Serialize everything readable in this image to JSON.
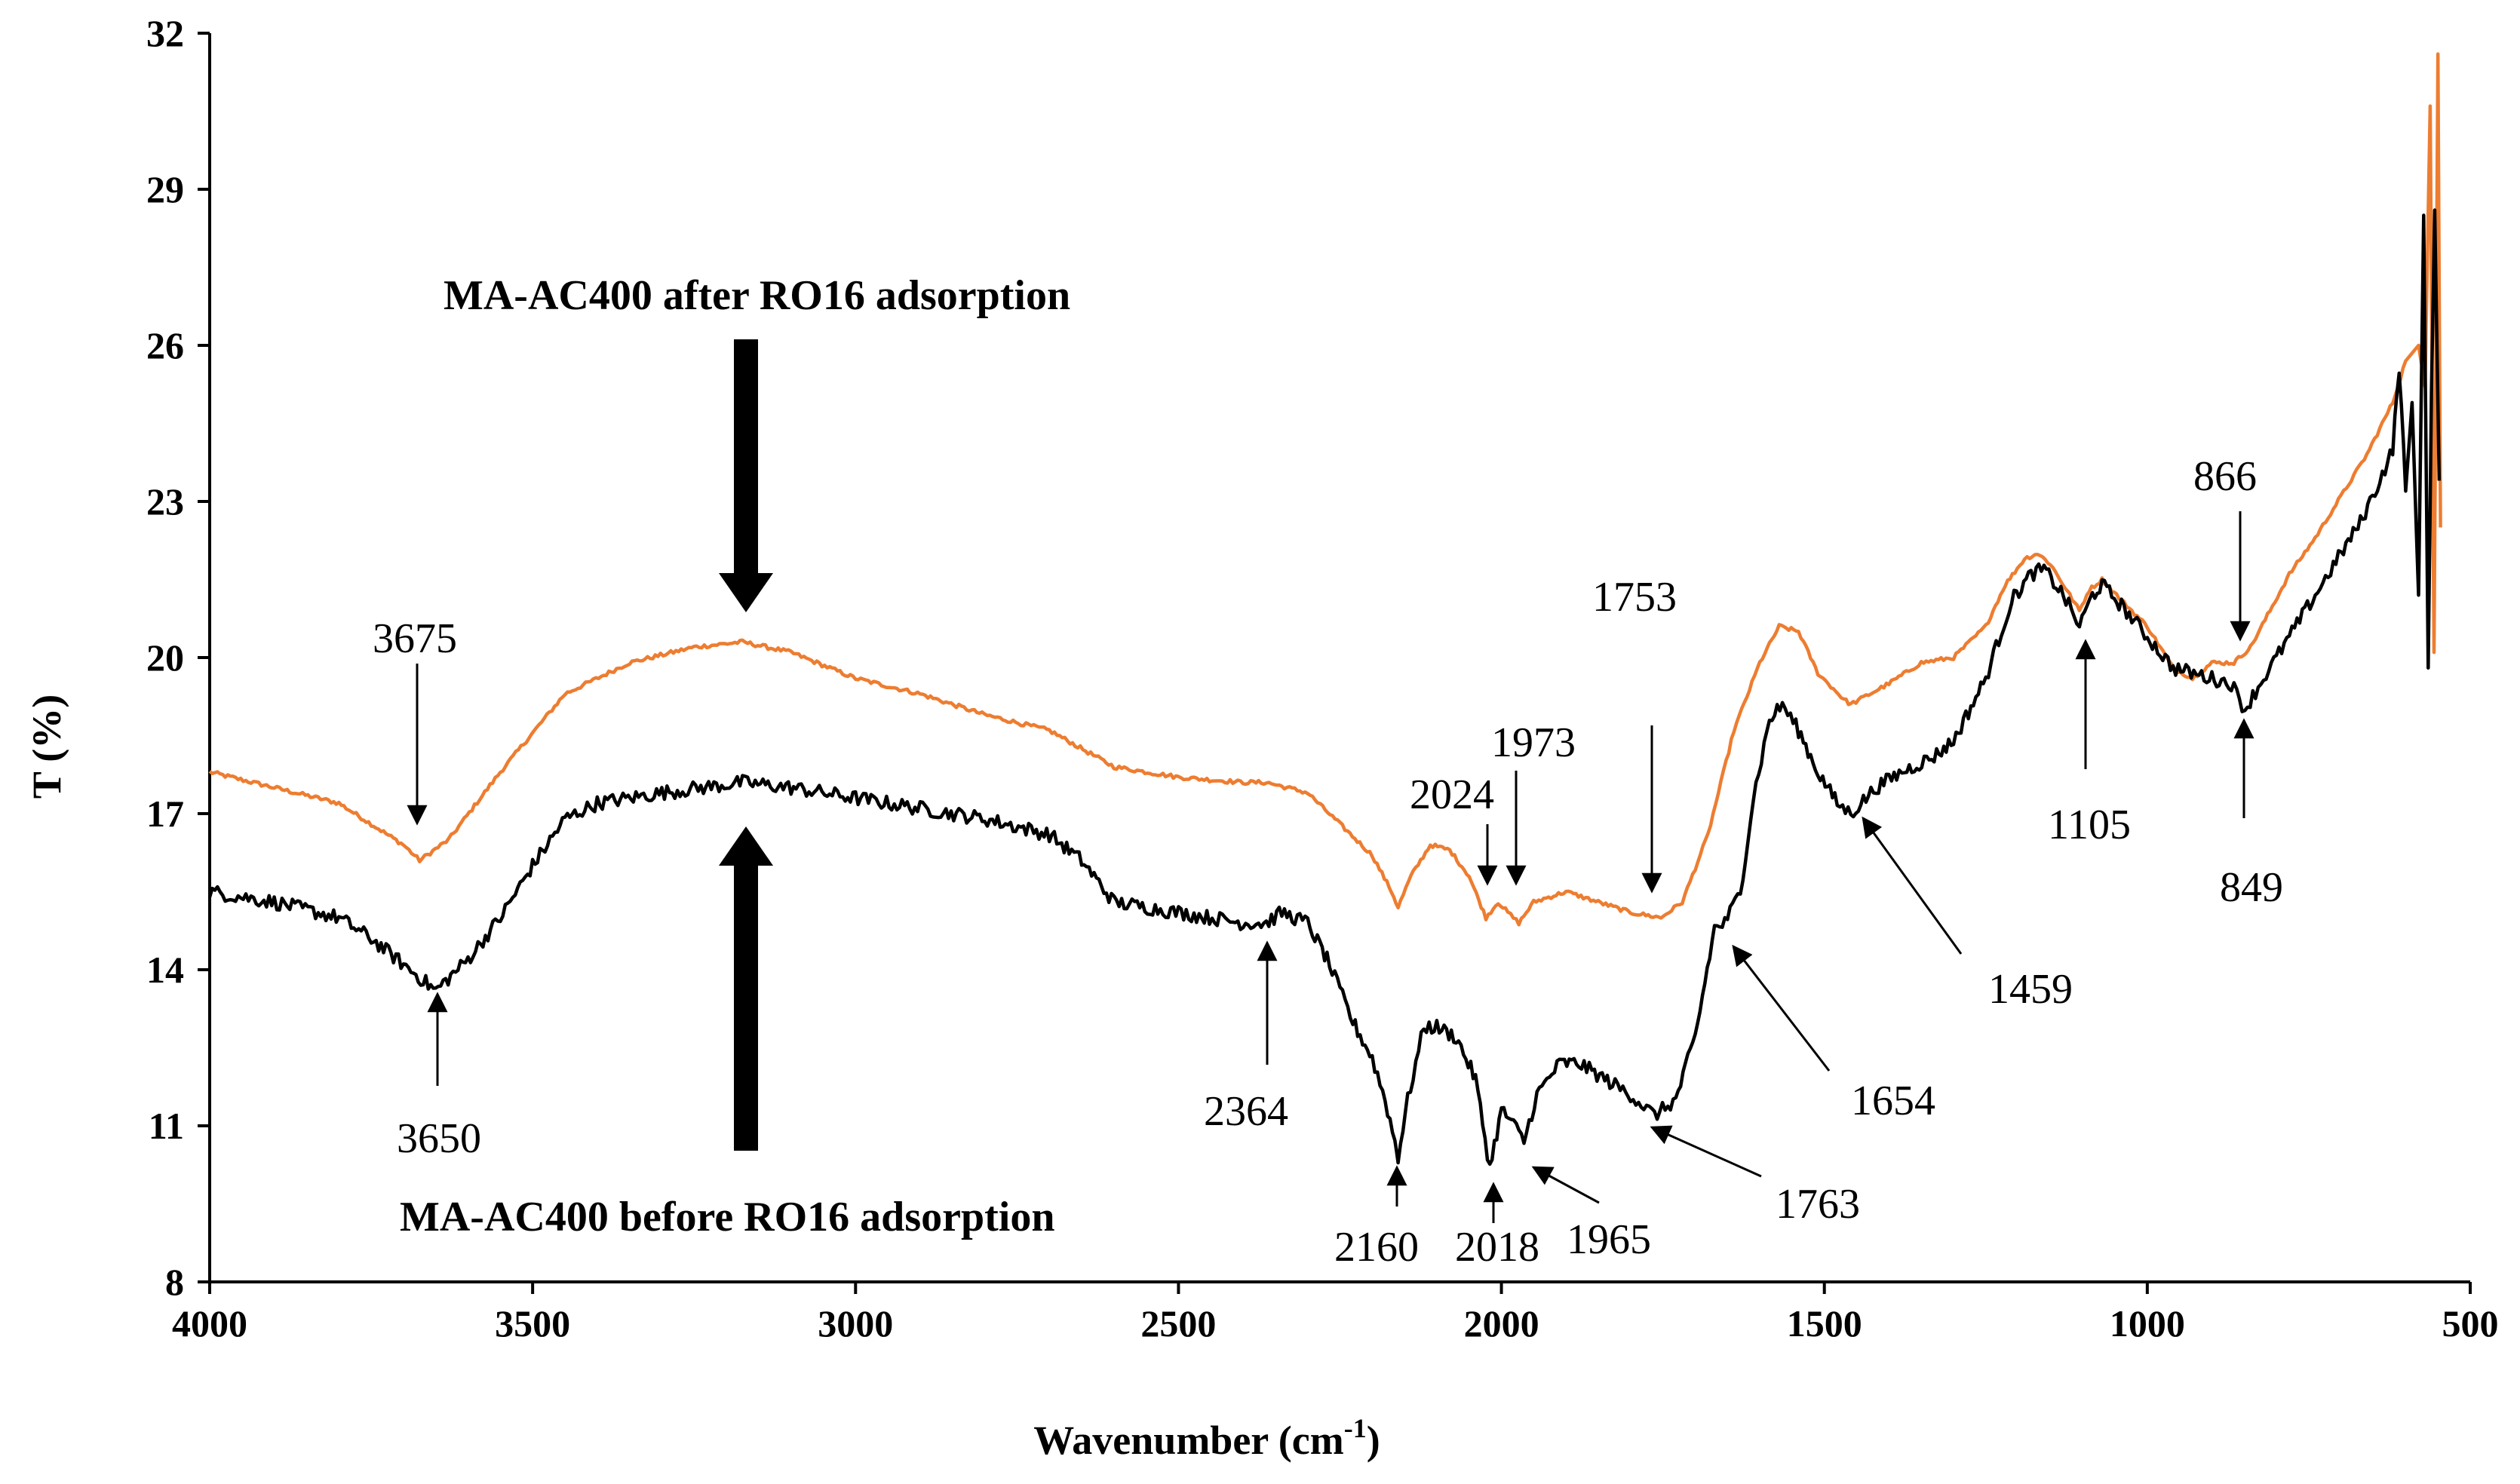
{
  "chart_data": {
    "type": "line",
    "title": "",
    "xlabel": "Wavenumber (cm",
    "xlabel_sup": "-1",
    "xlabel_close": ")",
    "ylabel": "T (%)",
    "xlim": [
      4000,
      500
    ],
    "ylim": [
      8,
      32
    ],
    "x_reversed": true,
    "grid": false,
    "xticks": [
      4000,
      3500,
      3000,
      2500,
      2000,
      1500,
      1000,
      500
    ],
    "yticks": [
      8,
      11,
      14,
      17,
      20,
      23,
      26,
      29,
      32
    ],
    "series": [
      {
        "name": "MA-AC400 after RO16 adsorption",
        "color": "#ED7D31",
        "points": [
          [
            4000,
            17.8
          ],
          [
            3900,
            17.5
          ],
          [
            3800,
            17.2
          ],
          [
            3750,
            16.8
          ],
          [
            3700,
            16.4
          ],
          [
            3675,
            16.1
          ],
          [
            3630,
            16.5
          ],
          [
            3550,
            17.8
          ],
          [
            3450,
            19.3
          ],
          [
            3350,
            19.9
          ],
          [
            3250,
            20.2
          ],
          [
            3175,
            20.3
          ],
          [
            3100,
            20.1
          ],
          [
            3000,
            19.6
          ],
          [
            2900,
            19.3
          ],
          [
            2800,
            18.9
          ],
          [
            2700,
            18.6
          ],
          [
            2600,
            17.9
          ],
          [
            2500,
            17.7
          ],
          [
            2400,
            17.6
          ],
          [
            2364,
            17.6
          ],
          [
            2300,
            17.4
          ],
          [
            2250,
            16.8
          ],
          [
            2200,
            16.2
          ],
          [
            2170,
            15.5
          ],
          [
            2160,
            15.2
          ],
          [
            2140,
            15.8
          ],
          [
            2110,
            16.4
          ],
          [
            2080,
            16.3
          ],
          [
            2050,
            15.8
          ],
          [
            2024,
            15.0
          ],
          [
            2005,
            15.3
          ],
          [
            1990,
            15.1
          ],
          [
            1973,
            14.9
          ],
          [
            1950,
            15.3
          ],
          [
            1900,
            15.5
          ],
          [
            1850,
            15.3
          ],
          [
            1800,
            15.1
          ],
          [
            1753,
            15.0
          ],
          [
            1720,
            15.3
          ],
          [
            1680,
            16.6
          ],
          [
            1640,
            18.6
          ],
          [
            1600,
            19.9
          ],
          [
            1570,
            20.6
          ],
          [
            1540,
            20.5
          ],
          [
            1510,
            19.7
          ],
          [
            1470,
            19.2
          ],
          [
            1459,
            19.1
          ],
          [
            1400,
            19.5
          ],
          [
            1350,
            19.9
          ],
          [
            1300,
            20.0
          ],
          [
            1250,
            20.6
          ],
          [
            1220,
            21.4
          ],
          [
            1190,
            21.9
          ],
          [
            1170,
            22.0
          ],
          [
            1150,
            21.8
          ],
          [
            1120,
            21.2
          ],
          [
            1105,
            20.9
          ],
          [
            1090,
            21.3
          ],
          [
            1070,
            21.5
          ],
          [
            1040,
            21.1
          ],
          [
            1000,
            20.6
          ],
          [
            960,
            19.8
          ],
          [
            930,
            19.6
          ],
          [
            900,
            19.9
          ],
          [
            866,
            19.9
          ],
          [
            840,
            20.2
          ],
          [
            810,
            20.9
          ],
          [
            780,
            21.6
          ],
          [
            740,
            22.3
          ],
          [
            700,
            23.1
          ],
          [
            660,
            23.9
          ],
          [
            620,
            24.9
          ],
          [
            600,
            25.7
          ],
          [
            580,
            26.0
          ],
          [
            570,
            25.2
          ],
          [
            562,
            30.6
          ],
          [
            556,
            20.1
          ],
          [
            550,
            31.6
          ],
          [
            546,
            22.5
          ]
        ]
      },
      {
        "name": "MA-AC400 before RO16 adsorption",
        "color": "#000000",
        "points": [
          [
            4000,
            15.5
          ],
          [
            3900,
            15.3
          ],
          [
            3800,
            15.0
          ],
          [
            3750,
            14.6
          ],
          [
            3700,
            14.1
          ],
          [
            3650,
            13.6
          ],
          [
            3600,
            14.2
          ],
          [
            3550,
            15.0
          ],
          [
            3500,
            16.0
          ],
          [
            3450,
            16.9
          ],
          [
            3400,
            17.2
          ],
          [
            3300,
            17.4
          ],
          [
            3175,
            17.6
          ],
          [
            3100,
            17.5
          ],
          [
            3000,
            17.3
          ],
          [
            2900,
            17.1
          ],
          [
            2800,
            16.9
          ],
          [
            2700,
            16.6
          ],
          [
            2650,
            16.1
          ],
          [
            2600,
            15.3
          ],
          [
            2500,
            15.1
          ],
          [
            2400,
            14.9
          ],
          [
            2364,
            14.9
          ],
          [
            2340,
            15.1
          ],
          [
            2300,
            14.9
          ],
          [
            2270,
            14.2
          ],
          [
            2230,
            13.0
          ],
          [
            2200,
            12.3
          ],
          [
            2180,
            11.5
          ],
          [
            2165,
            10.7
          ],
          [
            2160,
            10.4
          ],
          [
            2145,
            11.5
          ],
          [
            2120,
            12.9
          ],
          [
            2100,
            12.9
          ],
          [
            2070,
            12.7
          ],
          [
            2040,
            11.9
          ],
          [
            2018,
            10.2
          ],
          [
            2000,
            11.3
          ],
          [
            1985,
            11.1
          ],
          [
            1965,
            10.7
          ],
          [
            1945,
            11.6
          ],
          [
            1910,
            12.2
          ],
          [
            1880,
            12.2
          ],
          [
            1840,
            11.9
          ],
          [
            1800,
            11.6
          ],
          [
            1763,
            11.2
          ],
          [
            1730,
            11.5
          ],
          [
            1700,
            12.7
          ],
          [
            1670,
            14.8
          ],
          [
            1654,
            14.9
          ],
          [
            1630,
            15.5
          ],
          [
            1610,
            17.3
          ],
          [
            1585,
            18.8
          ],
          [
            1565,
            19.1
          ],
          [
            1540,
            18.6
          ],
          [
            1510,
            17.8
          ],
          [
            1480,
            17.2
          ],
          [
            1459,
            17.0
          ],
          [
            1420,
            17.5
          ],
          [
            1380,
            17.8
          ],
          [
            1330,
            18.1
          ],
          [
            1300,
            18.4
          ],
          [
            1250,
            19.6
          ],
          [
            1210,
            21.1
          ],
          [
            1180,
            21.6
          ],
          [
            1160,
            21.7
          ],
          [
            1130,
            21.2
          ],
          [
            1105,
            20.6
          ],
          [
            1085,
            21.2
          ],
          [
            1070,
            21.4
          ],
          [
            1040,
            21.0
          ],
          [
            1000,
            20.4
          ],
          [
            960,
            19.8
          ],
          [
            900,
            19.6
          ],
          [
            870,
            19.5
          ],
          [
            849,
            19.0
          ],
          [
            820,
            19.6
          ],
          [
            780,
            20.4
          ],
          [
            740,
            21.2
          ],
          [
            700,
            22.0
          ],
          [
            670,
            22.6
          ],
          [
            640,
            23.4
          ],
          [
            620,
            24.0
          ],
          [
            610,
            25.6
          ],
          [
            600,
            23.2
          ],
          [
            590,
            24.9
          ],
          [
            580,
            21.2
          ],
          [
            572,
            28.5
          ],
          [
            565,
            19.8
          ],
          [
            560,
            25.1
          ],
          [
            555,
            28.6
          ],
          [
            548,
            23.4
          ]
        ]
      }
    ],
    "annotations_after": [
      "3675",
      "2024",
      "1973",
      "1753",
      "866"
    ],
    "annotations_before": [
      "3650",
      "2364",
      "2160",
      "2018",
      "1965",
      "1763",
      "1654",
      "1459",
      "1105",
      "849"
    ],
    "labels": {
      "after": "MA-AC400 after RO16 adsorption",
      "before": "MA-AC400 before RO16 adsorption"
    }
  }
}
